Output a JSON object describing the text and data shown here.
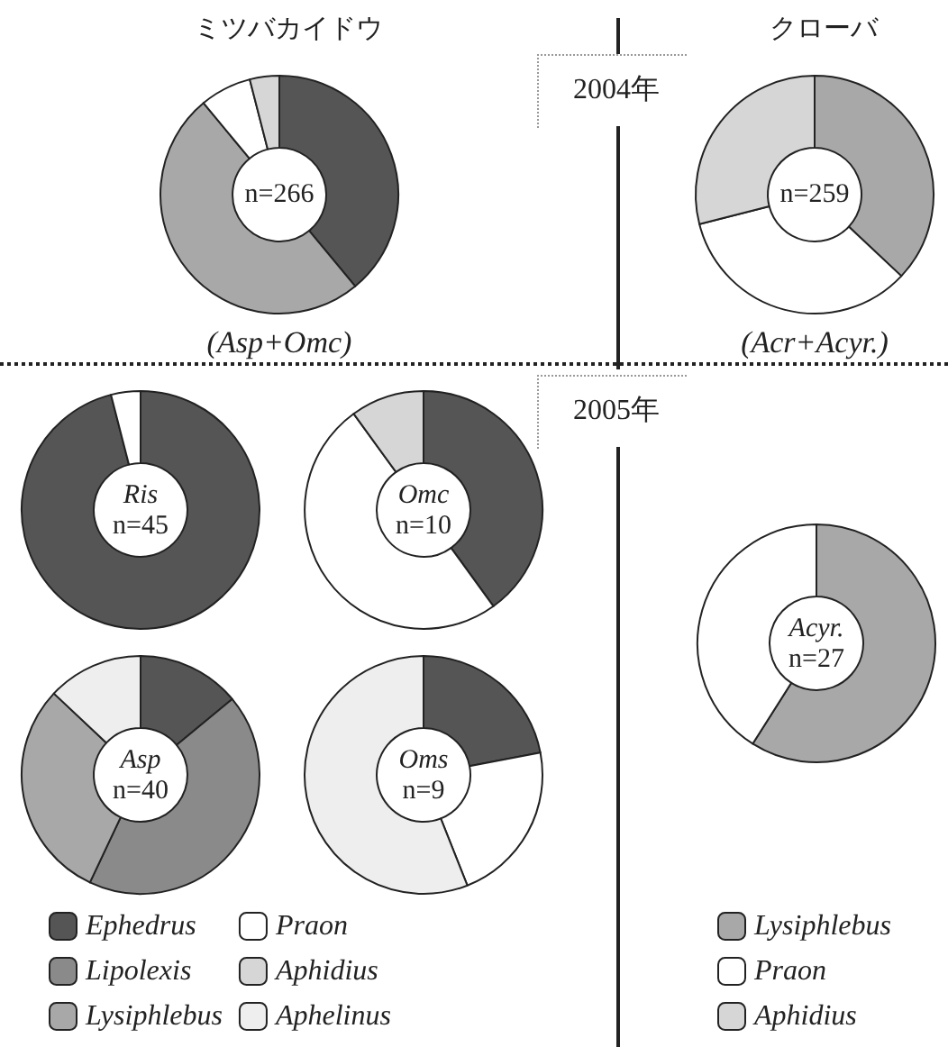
{
  "chart_data": [
    {
      "type": "donut",
      "title": "ミツバカイドウ",
      "legend": "bottom",
      "categories": [
        "Ephedrus",
        "Lipolexis",
        "Lysiphlebus",
        "Praon",
        "Aphidius",
        "Aphelinus"
      ],
      "colors": [
        "#555555",
        "#8a8a8a",
        "#a8a8a8",
        "#ffffff",
        "#d6d6d6",
        "#eeeeee"
      ],
      "series": [
        {
          "name": "(Asp+Omc)",
          "values": [
            39,
            0,
            50,
            7,
            4,
            0
          ]
        },
        {
          "name": "Ris",
          "values": [
            96,
            0,
            0,
            4,
            0,
            0
          ]
        },
        {
          "name": "Omc",
          "values": [
            40,
            0,
            0,
            50,
            10,
            0
          ]
        },
        {
          "name": "Asp",
          "values": [
            14,
            43,
            30,
            0,
            0,
            13
          ]
        },
        {
          "name": "Oms",
          "values": [
            22,
            0,
            0,
            22,
            0,
            56
          ]
        }
      ],
      "annotations": [
        "n=266",
        "n=45",
        "n=10",
        "n=40",
        "n=9",
        "2004年",
        "2005年"
      ]
    },
    {
      "type": "donut",
      "title": "クローバ",
      "legend": "bottom",
      "categories": [
        "Lysiphlebus",
        "Praon",
        "Aphidius"
      ],
      "colors": [
        "#a8a8a8",
        "#ffffff",
        "#d6d6d6"
      ],
      "series": [
        {
          "name": "(Acr+Acyr.)",
          "values": [
            37,
            34,
            29
          ]
        },
        {
          "name": "Acyr.",
          "values": [
            59,
            41,
            0
          ]
        }
      ],
      "annotations": [
        "n=259",
        "n=27"
      ]
    }
  ]
}
